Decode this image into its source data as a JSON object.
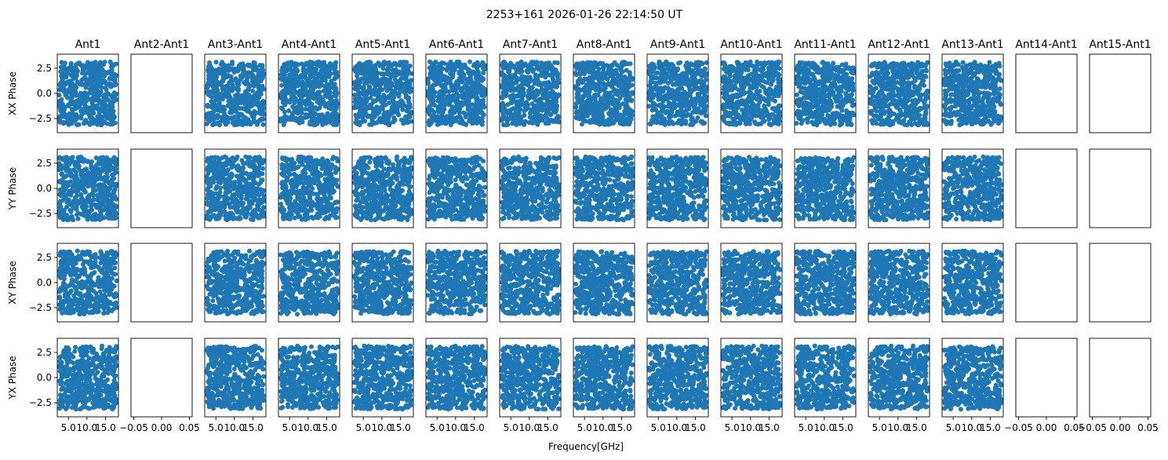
{
  "figure": {
    "suptitle": "2253+161 2026-01-26 22:14:50 UT",
    "xlabel": "Frequency[GHz]",
    "marker_color": "#1f77b4"
  },
  "chart_data": {
    "type": "scatter",
    "title": "2253+161 2026-01-26 22:14:50 UT",
    "xlabel": "Frequency[GHz]",
    "grid": false,
    "legend": "none",
    "columns": [
      "Ant1",
      "Ant2-Ant1",
      "Ant3-Ant1",
      "Ant4-Ant1",
      "Ant5-Ant1",
      "Ant6-Ant1",
      "Ant7-Ant1",
      "Ant8-Ant1",
      "Ant9-Ant1",
      "Ant10-Ant1",
      "Ant11-Ant1",
      "Ant12-Ant1",
      "Ant13-Ant1",
      "Ant14-Ant1",
      "Ant15-Ant1"
    ],
    "rows": [
      "XX Phase",
      "YY Phase",
      "XY Phase",
      "YX Phase"
    ],
    "ylim": [
      -3.9,
      3.9
    ],
    "yticks": [
      -2.5,
      0.0,
      2.5
    ],
    "ytick_labels": [
      "−2.5",
      "0.0",
      "2.5"
    ],
    "xlim_data": [
      2.0,
      18.5
    ],
    "xticks_data": [
      5.0,
      10.0,
      15.0
    ],
    "xtick_labels_data": [
      "5.0",
      "10.0",
      "15.0"
    ],
    "xlim_empty": [
      -0.055,
      0.055
    ],
    "xticks_empty": [
      -0.05,
      0.0,
      0.05
    ],
    "xtick_labels_empty": [
      "−0.05",
      "0.00",
      "0.05"
    ],
    "empty_columns": [
      1,
      13,
      14
    ],
    "points_per_panel": 500,
    "x_range": [
      2.5,
      18.0
    ],
    "y_range": [
      -3.14,
      3.14
    ],
    "distribution": "uniform random phase"
  }
}
